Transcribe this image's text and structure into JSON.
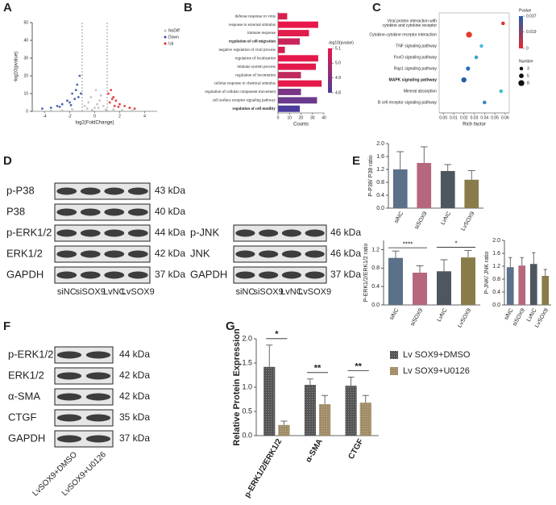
{
  "panels": [
    "A",
    "B",
    "C",
    "D",
    "E",
    "F",
    "G"
  ],
  "chart_data": [
    {
      "type": "scatter",
      "xlabel": "log2(FoldChange)",
      "ylabel": "-log10(pvalue)",
      "xlim": [
        -5,
        5
      ],
      "xticks": [
        -4,
        -2,
        0,
        2,
        4
      ],
      "ylim": [
        0,
        50
      ],
      "yticks": [
        0,
        10,
        20,
        30,
        40,
        50
      ],
      "thresholds": [
        -1,
        1
      ],
      "series": [
        {
          "name": "NoDiff",
          "color": "#bbbbbb",
          "x": [
            -0.8,
            -0.5,
            -0.3,
            0,
            0.2,
            0.4,
            0.7,
            0.9,
            -0.6,
            0.3,
            -0.2,
            0.5,
            1.5,
            2.2,
            -1.8,
            3,
            -3.5,
            2.8,
            -2.6,
            0.1
          ],
          "y": [
            3,
            5,
            8,
            2,
            4,
            6,
            3,
            1,
            1.5,
            2,
            0.8,
            9,
            1,
            0.6,
            1.2,
            0.4,
            0.3,
            2,
            0.5,
            12
          ]
        },
        {
          "name": "Down",
          "color": "#2b4aa8",
          "x": [
            -1.2,
            -1.5,
            -1.8,
            -2.2,
            -2.6,
            -3,
            -3.5,
            -1.3,
            -1.4,
            -2,
            -1.6,
            -1.1,
            -4.2,
            -2.8,
            -1.9
          ],
          "y": [
            20,
            12,
            10,
            6,
            4,
            3,
            2,
            8,
            15,
            5,
            7,
            10,
            1.5,
            2.5,
            3.5
          ]
        },
        {
          "name": "Up",
          "color": "#e02020",
          "x": [
            1.1,
            1.3,
            1.5,
            1.7,
            2,
            2.4,
            2.8,
            1.2,
            1.4,
            3.2,
            1.6,
            1.9
          ],
          "y": [
            10,
            12,
            8,
            6,
            4,
            3,
            2,
            5,
            7,
            1.5,
            3,
            2.5
          ]
        }
      ]
    },
    {
      "type": "bar",
      "horizontal": true,
      "xlabel": "Counts",
      "categories": [
        "defense response to virus",
        "response to external stimulus",
        "immune response",
        "regulation of cell migration",
        "negative regulation of viral process",
        "regulation of localization",
        "immune system process",
        "regulation of locomotion",
        "cellular response to chemical stimulus",
        "regulation of cellular component movement",
        "cell surface receptor signaling pathway",
        "regulation of cell motility"
      ],
      "values": [
        8,
        35,
        27,
        19,
        6,
        35,
        33,
        20,
        38,
        20,
        34,
        19
      ],
      "colors": [
        "#d8204f",
        "#e8174a",
        "#e01d4d",
        "#c8265a",
        "#d41f50",
        "#e5184b",
        "#e3194c",
        "#c02a5f",
        "#e61a4a",
        "#7a3585",
        "#6a3a8c",
        "#4b3d9b"
      ],
      "bold": [
        3,
        11
      ],
      "xlim": [
        0,
        40
      ],
      "xticks": [
        0,
        10,
        20,
        30,
        40
      ],
      "colorbar": {
        "title": "-log10(pvalue)",
        "ticks": [
          5.1,
          {
            "value": 5,
            "label": "5.0"
          },
          4.9,
          4.8
        ],
        "colors": [
          "#e8174a",
          "#4b3d9b"
        ]
      }
    },
    {
      "type": "dot",
      "xlabel": "Rich factor",
      "categories": [
        "Viral protein interaction with cytokine and cytokine receptor",
        "Cytokine-cytokine receptor interaction",
        "TNF signaling pathway",
        "FoxO signaling pathway",
        "Rap1 signaling pathway",
        "MAPK signaling pathway",
        "Mineral absorption",
        "B cell receptor signaling pathway"
      ],
      "values": [
        0.058,
        0.025,
        0.037,
        0.032,
        0.024,
        0.02,
        0.056,
        0.04
      ],
      "sizes": [
        3,
        8,
        3,
        3,
        4,
        6,
        3,
        3
      ],
      "colors": [
        "#e03030",
        "#e33a2f",
        "#4db8e0",
        "#3fa0d0",
        "#2a6fb8",
        "#1f5fa8",
        "#40c0c0",
        "#3a80c8"
      ],
      "bold": [
        5
      ],
      "xlim": [
        -0.004,
        0.064
      ],
      "xticks": [
        {
          "value": 0,
          "label": "0.00"
        },
        0.01,
        0.02,
        0.03,
        0.04,
        0.05,
        0.06
      ],
      "colorbar": {
        "title": "Pvalue",
        "ticks": [
          0.037,
          0.019,
          0
        ],
        "colors": [
          "#1f5fa8",
          "#e8282b"
        ]
      },
      "size_legend": {
        "title": "Number",
        "values": [
          3,
          5,
          8
        ]
      }
    },
    {
      "type": "bar",
      "ylabel": "P-P38/ P38 ratio",
      "categories": [
        "siNC",
        "siSOX9",
        "LvNC",
        "LvSOX9"
      ],
      "values": [
        1.2,
        1.4,
        1.15,
        0.88
      ],
      "errors": [
        0.55,
        0.5,
        0.2,
        0.28
      ],
      "colors": [
        "#5b7089",
        "#b5687d",
        "#4e5660",
        "#8a7c4a"
      ],
      "ylim": [
        0,
        2
      ],
      "yticks": [
        {
          "value": 0,
          "label": "0.0"
        },
        0.4,
        0.8,
        1.2,
        1.6,
        {
          "value": 2,
          "label": "2.0"
        }
      ]
    },
    {
      "type": "bar",
      "ylabel": "P-ERK1/2/ERK1/2 ratio",
      "categories": [
        "siNC",
        "siSOX9",
        "LvNC",
        "LvSOX9"
      ],
      "values": [
        1.02,
        0.7,
        0.73,
        1.03
      ],
      "errors": [
        0.15,
        0.15,
        0.25,
        0.15
      ],
      "colors": [
        "#5b7089",
        "#b5687d",
        "#4e5660",
        "#8a7c4a"
      ],
      "ylim": [
        0,
        1.4
      ],
      "yticks": [
        {
          "value": 0,
          "label": "0.0"
        },
        0.4,
        0.8,
        1.2
      ],
      "annotations": [
        {
          "text": "****",
          "between": [
            "siNC",
            "siSOX9"
          ]
        },
        {
          "text": "*",
          "between": [
            "LvNC",
            "LvSOX9"
          ]
        }
      ]
    },
    {
      "type": "bar",
      "ylabel": "P-JNK/ JNK ratio",
      "categories": [
        "siNC",
        "siSOX9",
        "LvNC",
        "LvSOX9"
      ],
      "values": [
        1.17,
        1.22,
        1.27,
        0.9
      ],
      "errors": [
        0.3,
        0.25,
        0.35,
        0.2
      ],
      "colors": [
        "#5b7089",
        "#b5687d",
        "#4e5660",
        "#8a7c4a"
      ],
      "ylim": [
        0,
        2
      ],
      "yticks": [
        {
          "value": 0,
          "label": "0.0"
        },
        0.4,
        0.8,
        1.2,
        1.6,
        {
          "value": 2,
          "label": "2.0"
        }
      ]
    },
    {
      "type": "bar",
      "ylabel": "Relative Protein Expression",
      "categories": [
        "p-ERK1/2/ERK1/2",
        "α-SMA",
        "CTGF"
      ],
      "series": [
        {
          "name": "Lv SOX9+DMSO",
          "color": "#555555",
          "values": [
            1.42,
            1.05,
            1.03
          ],
          "errors": [
            0.45,
            0.12,
            0.18
          ]
        },
        {
          "name": "Lv SOX9+U0126",
          "color": "#a08c66",
          "values": [
            0.22,
            0.65,
            0.68
          ],
          "errors": [
            0.08,
            0.18,
            0.15
          ]
        }
      ],
      "ylim": [
        0,
        2
      ],
      "yticks": [
        {
          "value": 0,
          "label": "0.0"
        },
        0.5,
        {
          "value": 1,
          "label": "1.0"
        },
        1.5,
        {
          "value": 2,
          "label": "2.0"
        }
      ],
      "annotations": [
        "*",
        "**",
        "**"
      ]
    }
  ],
  "blots": [
    {
      "rows": [
        {
          "label": "p-P38",
          "size": "43 kDa"
        },
        {
          "label": "P38",
          "size": "40 kDa"
        },
        {
          "label": "p-ERK1/2",
          "size": "44 kDa"
        },
        {
          "label": "ERK1/2",
          "size": "42 kDa"
        },
        {
          "label": "GAPDH",
          "size": "37 kDa"
        }
      ],
      "lanes": [
        "siNC",
        "siSOX9",
        "LvNC",
        "LvSOX9"
      ]
    },
    {
      "rows": [
        {
          "label": "p-JNK",
          "size": "46 kDa"
        },
        {
          "label": "JNK",
          "size": "46 kDa"
        },
        {
          "label": "GAPDH",
          "size": "37 kDa"
        }
      ],
      "lanes": [
        "siNC",
        "siSOX9",
        "LvNC",
        "LvSOX9"
      ]
    },
    {
      "rows": [
        {
          "label": "p-ERK1/2",
          "size": "44 kDa"
        },
        {
          "label": "ERK1/2",
          "size": "42 kDa"
        },
        {
          "label": "α-SMA",
          "size": "42 kDa"
        },
        {
          "label": "CTGF",
          "size": "35 kDa"
        },
        {
          "label": "GAPDH",
          "size": "37 kDa"
        }
      ],
      "lanes": [
        "LvSOX9+DMSO",
        "LvSOX9+U0126"
      ]
    }
  ]
}
